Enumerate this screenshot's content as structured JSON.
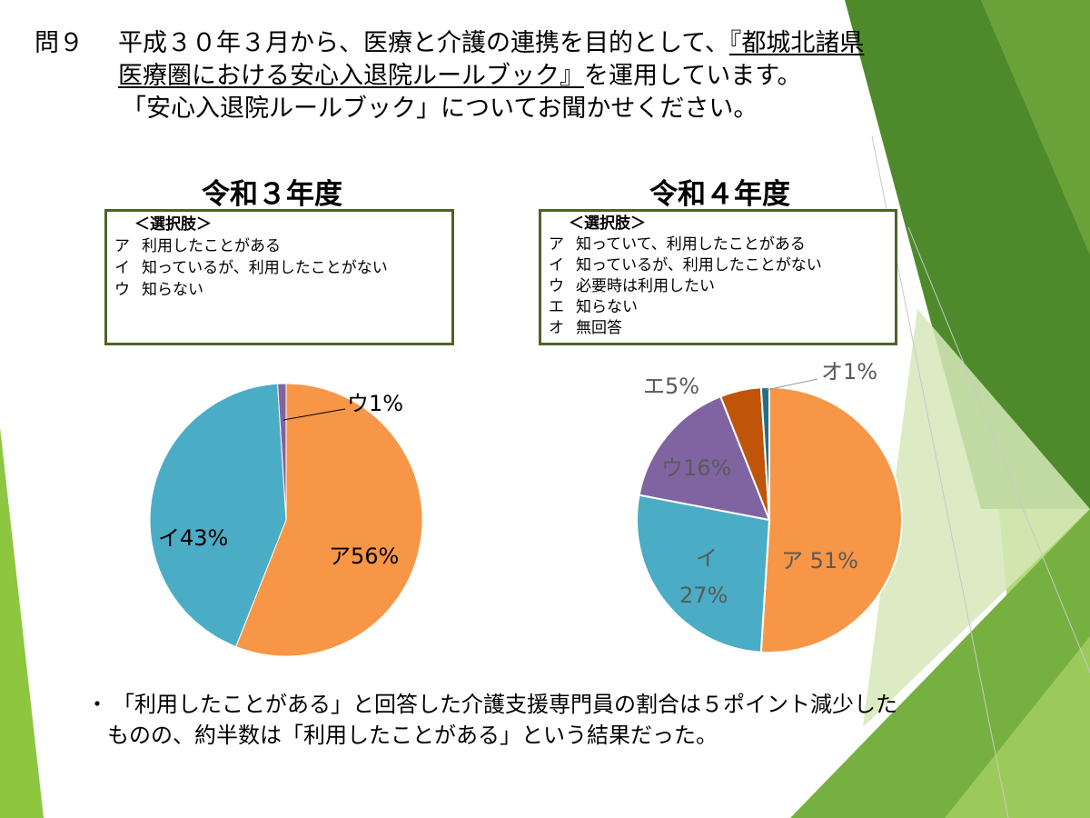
{
  "question": {
    "number": "問９",
    "line1_pre": "平成３０年３月から、医療と介護の連携を目的として、",
    "line1_book": "『都城北諸県",
    "line2_book": "医療圏における安心入退院ルールブック』",
    "line2_post": "を運用しています。",
    "line3": "「安心入退院ルールブック」についてお聞かせください。"
  },
  "colors": {
    "orange": "#f79646",
    "blue": "#4bacc6",
    "purple": "#8064a2",
    "dark_orange": "#c0550a",
    "teal": "#1f6f8b",
    "green_dark": "#4f6228",
    "green": "#76b041"
  },
  "chart_data": [
    {
      "type": "pie",
      "title": "令和３年度",
      "legend_header": "＜選択肢＞",
      "legend_items": [
        {
          "key": "ア",
          "text": "利用したことがある"
        },
        {
          "key": "イ",
          "text": "知っているが、利用したことがない"
        },
        {
          "key": "ウ",
          "text": "知らない"
        }
      ],
      "slices": [
        {
          "key": "ア",
          "label": "ア56%",
          "value": 56,
          "color": "#f79646"
        },
        {
          "key": "イ",
          "label": "イ43%",
          "value": 43,
          "color": "#4bacc6"
        },
        {
          "key": "ウ",
          "label": "ウ1%",
          "value": 1,
          "color": "#8064a2"
        }
      ]
    },
    {
      "type": "pie",
      "title": "令和４年度",
      "legend_header": "＜選択肢＞",
      "legend_items": [
        {
          "key": "ア",
          "text": "知っていて、利用したことがある"
        },
        {
          "key": "イ",
          "text": "知っているが、利用したことがない"
        },
        {
          "key": "ウ",
          "text": "必要時は利用したい"
        },
        {
          "key": "エ",
          "text": "知らない"
        },
        {
          "key": "オ",
          "text": "無回答"
        }
      ],
      "slices": [
        {
          "key": "ア",
          "label": "ア 51%",
          "value": 51,
          "color": "#f79646"
        },
        {
          "key": "イ",
          "label_line1": "イ",
          "label_line2": "27%",
          "value": 27,
          "color": "#4bacc6"
        },
        {
          "key": "ウ",
          "label": "ウ16%",
          "value": 16,
          "color": "#8064a2"
        },
        {
          "key": "エ",
          "label": "エ5%",
          "value": 5,
          "color": "#c0550a"
        },
        {
          "key": "オ",
          "label": "オ1%",
          "value": 1,
          "color": "#1f6f8b"
        }
      ]
    }
  ],
  "note": {
    "bullet": "・",
    "line1": "「利用したことがある」と回答した介護支援専門員の割合は５ポイント減少した",
    "line2": "ものの、約半数は「利用したことがある」という結果だった。"
  }
}
